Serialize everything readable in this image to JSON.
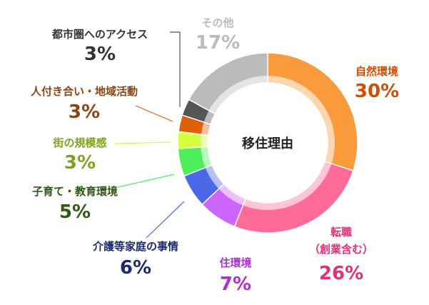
{
  "chart_data": {
    "type": "donut",
    "title": "移住理由",
    "categories": [
      "自然環境",
      "転職\n（創業含む）",
      "住環境",
      "介護等家庭の事情",
      "子育て・教育環境",
      "街の規模感",
      "人付き合い・地域活動",
      "都市圏へのアクセス",
      "その他"
    ],
    "values": [
      30,
      26,
      7,
      6,
      5,
      3,
      3,
      3,
      17
    ],
    "value_labels": [
      "30%",
      "26%",
      "7%",
      "6%",
      "5%",
      "3%",
      "3%",
      "3%",
      "17%"
    ],
    "colors": [
      "#fb9a3b",
      "#ff6b98",
      "#cc66ff",
      "#4a68e8",
      "#4eef5a",
      "#d4ff3c",
      "#e06008",
      "#555555",
      "#bbbbbb"
    ],
    "label_colors": [
      "#d34d00",
      "#e0307a",
      "#b02fd4",
      "#1b2a68",
      "#2d5a12",
      "#7fa31f",
      "#8a4512",
      "#333333",
      "#bbbbbb"
    ]
  }
}
